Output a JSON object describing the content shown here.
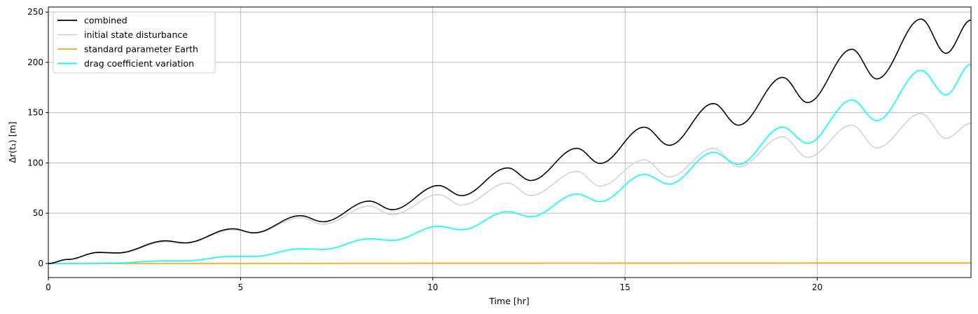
{
  "chart_data": {
    "type": "line",
    "title": "",
    "xlabel": "Time [hr]",
    "ylabel": "Δr(t₁) [m]",
    "xlim": [
      0,
      24
    ],
    "ylim": [
      -14,
      255
    ],
    "xticks": [
      0,
      5,
      10,
      15,
      20
    ],
    "yticks": [
      0,
      50,
      100,
      150,
      200,
      250
    ],
    "grid": true,
    "legend_position": "upper-left",
    "series": [
      {
        "name": "combined",
        "color": "#000000",
        "points": [
          [
            0,
            0
          ],
          [
            0.5,
            4
          ],
          [
            1.3,
            11
          ],
          [
            1.8,
            10.5
          ],
          [
            3.05,
            22.5
          ],
          [
            3.55,
            20.5
          ],
          [
            4.8,
            34.5
          ],
          [
            5.35,
            30.5
          ],
          [
            6.55,
            47.5
          ],
          [
            7.15,
            41.5
          ],
          [
            8.35,
            62
          ],
          [
            8.95,
            53.5
          ],
          [
            10.15,
            77.5
          ],
          [
            10.75,
            67.5
          ],
          [
            11.95,
            95
          ],
          [
            12.55,
            82.5
          ],
          [
            13.75,
            114.5
          ],
          [
            14.35,
            99.5
          ],
          [
            15.5,
            135.5
          ],
          [
            16.15,
            117.5
          ],
          [
            17.3,
            159
          ],
          [
            17.95,
            137.5
          ],
          [
            19.1,
            185
          ],
          [
            19.75,
            160
          ],
          [
            20.9,
            213
          ],
          [
            21.55,
            183.5
          ],
          [
            22.7,
            243
          ],
          [
            23.35,
            209
          ],
          [
            24,
            242
          ]
        ]
      },
      {
        "name": "initial state disturbance",
        "color": "#d3d3d3",
        "points": [
          [
            0,
            0
          ],
          [
            0.5,
            4
          ],
          [
            1.3,
            10.5
          ],
          [
            1.8,
            10
          ],
          [
            3.05,
            21.5
          ],
          [
            3.55,
            20
          ],
          [
            4.8,
            33.5
          ],
          [
            5.35,
            30
          ],
          [
            6.55,
            45.5
          ],
          [
            7.15,
            39
          ],
          [
            8.35,
            57
          ],
          [
            8.95,
            48.5
          ],
          [
            10.15,
            68.5
          ],
          [
            10.75,
            58
          ],
          [
            11.95,
            80
          ],
          [
            12.55,
            67.5
          ],
          [
            13.75,
            91.5
          ],
          [
            14.35,
            77
          ],
          [
            15.5,
            103
          ],
          [
            16.15,
            86
          ],
          [
            17.3,
            114.5
          ],
          [
            17.95,
            96
          ],
          [
            19.1,
            126
          ],
          [
            19.75,
            105.5
          ],
          [
            20.9,
            137.5
          ],
          [
            21.55,
            115
          ],
          [
            22.7,
            149
          ],
          [
            23.35,
            124.5
          ],
          [
            24,
            139.5
          ]
        ]
      },
      {
        "name": "standard parameter Earth",
        "color": "#ffa500",
        "points": [
          [
            0,
            0
          ],
          [
            24,
            0.5
          ]
        ]
      },
      {
        "name": "drag coefficient variation",
        "color": "#00ffff",
        "points": [
          [
            0,
            0
          ],
          [
            1,
            0
          ],
          [
            1.8,
            0.5
          ],
          [
            2.9,
            2.5
          ],
          [
            3.55,
            2.5
          ],
          [
            4.75,
            7
          ],
          [
            5.35,
            7
          ],
          [
            6.55,
            14.5
          ],
          [
            7.15,
            14
          ],
          [
            8.35,
            24.5
          ],
          [
            8.95,
            23
          ],
          [
            10.15,
            37
          ],
          [
            10.75,
            33.5
          ],
          [
            11.95,
            51.5
          ],
          [
            12.55,
            46.5
          ],
          [
            13.75,
            69
          ],
          [
            14.35,
            61.5
          ],
          [
            15.5,
            88.5
          ],
          [
            16.15,
            79
          ],
          [
            17.3,
            110.5
          ],
          [
            17.95,
            98.5
          ],
          [
            19.1,
            135.5
          ],
          [
            19.75,
            119.5
          ],
          [
            20.9,
            162.5
          ],
          [
            21.55,
            142
          ],
          [
            22.7,
            192
          ],
          [
            23.35,
            167.5
          ],
          [
            24,
            198
          ]
        ]
      }
    ]
  }
}
